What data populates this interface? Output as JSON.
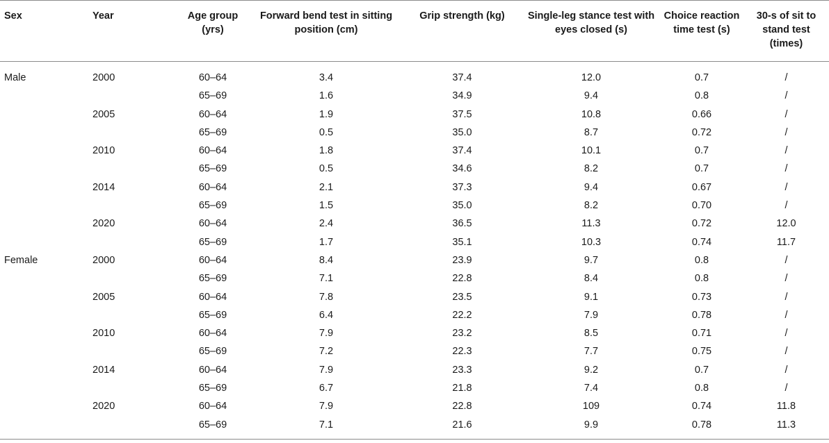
{
  "headers": {
    "sex": "Sex",
    "year": "Year",
    "age_group": "Age group (yrs)",
    "forward_bend": "Forward bend test in sitting position (cm)",
    "grip": "Grip strength (kg)",
    "single_leg": "Single-leg stance test with eyes closed (s)",
    "choice_reaction": "Choice reaction time test (s)",
    "sit_to_stand": "30-s of sit to stand test (times)"
  },
  "rows": [
    {
      "sex": "Male",
      "year": "2000",
      "age": "60–64",
      "fwd": "3.4",
      "grip": "37.4",
      "sls": "12.0",
      "crt": "0.7",
      "sts": "/"
    },
    {
      "sex": "",
      "year": "",
      "age": "65–69",
      "fwd": "1.6",
      "grip": "34.9",
      "sls": "9.4",
      "crt": "0.8",
      "sts": "/"
    },
    {
      "sex": "",
      "year": "2005",
      "age": "60–64",
      "fwd": "1.9",
      "grip": "37.5",
      "sls": "10.8",
      "crt": "0.66",
      "sts": "/"
    },
    {
      "sex": "",
      "year": "",
      "age": "65–69",
      "fwd": "0.5",
      "grip": "35.0",
      "sls": "8.7",
      "crt": "0.72",
      "sts": "/"
    },
    {
      "sex": "",
      "year": "2010",
      "age": "60–64",
      "fwd": "1.8",
      "grip": "37.4",
      "sls": "10.1",
      "crt": "0.7",
      "sts": "/"
    },
    {
      "sex": "",
      "year": "",
      "age": "65–69",
      "fwd": "0.5",
      "grip": "34.6",
      "sls": "8.2",
      "crt": "0.7",
      "sts": "/"
    },
    {
      "sex": "",
      "year": "2014",
      "age": "60–64",
      "fwd": "2.1",
      "grip": "37.3",
      "sls": "9.4",
      "crt": "0.67",
      "sts": "/"
    },
    {
      "sex": "",
      "year": "",
      "age": "65–69",
      "fwd": "1.5",
      "grip": "35.0",
      "sls": "8.2",
      "crt": "0.70",
      "sts": "/"
    },
    {
      "sex": "",
      "year": "2020",
      "age": "60–64",
      "fwd": "2.4",
      "grip": "36.5",
      "sls": "11.3",
      "crt": "0.72",
      "sts": "12.0"
    },
    {
      "sex": "",
      "year": "",
      "age": "65–69",
      "fwd": "1.7",
      "grip": "35.1",
      "sls": "10.3",
      "crt": "0.74",
      "sts": "11.7"
    },
    {
      "sex": "Female",
      "year": "2000",
      "age": "60–64",
      "fwd": "8.4",
      "grip": "23.9",
      "sls": "9.7",
      "crt": "0.8",
      "sts": "/"
    },
    {
      "sex": "",
      "year": "",
      "age": "65–69",
      "fwd": "7.1",
      "grip": "22.8",
      "sls": "8.4",
      "crt": "0.8",
      "sts": "/"
    },
    {
      "sex": "",
      "year": "2005",
      "age": "60–64",
      "fwd": "7.8",
      "grip": "23.5",
      "sls": "9.1",
      "crt": "0.73",
      "sts": "/"
    },
    {
      "sex": "",
      "year": "",
      "age": "65–69",
      "fwd": "6.4",
      "grip": "22.2",
      "sls": "7.9",
      "crt": "0.78",
      "sts": "/"
    },
    {
      "sex": "",
      "year": "2010",
      "age": "60–64",
      "fwd": "7.9",
      "grip": "23.2",
      "sls": "8.5",
      "crt": "0.71",
      "sts": "/"
    },
    {
      "sex": "",
      "year": "",
      "age": "65–69",
      "fwd": "7.2",
      "grip": "22.3",
      "sls": "7.7",
      "crt": "0.75",
      "sts": "/"
    },
    {
      "sex": "",
      "year": "2014",
      "age": "60–64",
      "fwd": "7.9",
      "grip": "23.3",
      "sls": "9.2",
      "crt": "0.7",
      "sts": "/"
    },
    {
      "sex": "",
      "year": "",
      "age": "65–69",
      "fwd": "6.7",
      "grip": "21.8",
      "sls": "7.4",
      "crt": "0.8",
      "sts": "/"
    },
    {
      "sex": "",
      "year": "2020",
      "age": "60–64",
      "fwd": "7.9",
      "grip": "22.8",
      "sls": "109",
      "crt": "0.74",
      "sts": "11.8"
    },
    {
      "sex": "",
      "year": "",
      "age": "65–69",
      "fwd": "7.1",
      "grip": "21.6",
      "sls": "9.9",
      "crt": "0.78",
      "sts": "11.3"
    }
  ]
}
